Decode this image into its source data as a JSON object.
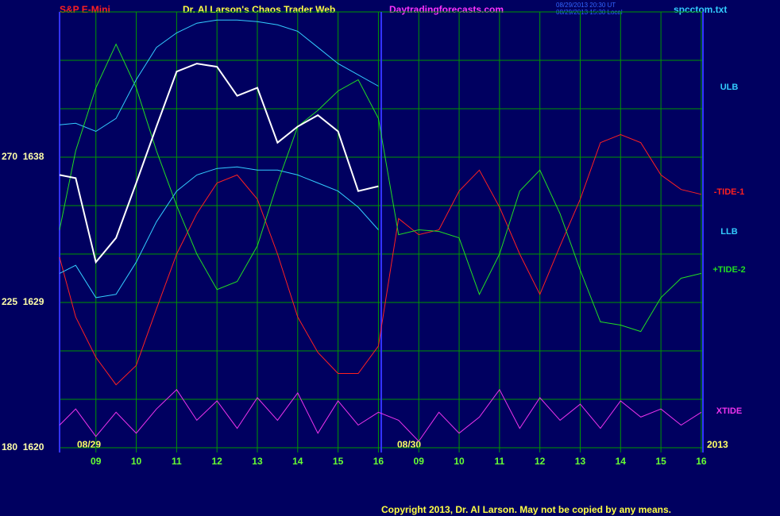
{
  "chart_data": {
    "type": "line",
    "subtitle": "S&P E-Mini",
    "title": "Dr. Al Larson's Chaos Trader Web",
    "site": "Daytradingforecasts.com",
    "timestamps": [
      "08/29/2013 20:30 UT",
      "08/29/2013 15:30 Local"
    ],
    "file": "spcctom.txt",
    "copyright": "Copyright 2013, Dr. Al Larson. May not be copied by any means.",
    "date_labels": [
      "08/29",
      "08/30",
      "2013"
    ],
    "grid": true,
    "xlim": [
      8.1,
      24.1
    ],
    "xticks": [
      {
        "value": 9,
        "label": "09"
      },
      10,
      11,
      12,
      13,
      14,
      15,
      16,
      {
        "value": 17,
        "label": "09"
      },
      {
        "value": 18,
        "label": "10"
      },
      {
        "value": 19,
        "label": "11"
      },
      {
        "value": 20,
        "label": "12"
      },
      {
        "value": 21,
        "label": "13"
      },
      {
        "value": 22,
        "label": "14"
      },
      {
        "value": 23,
        "label": "15"
      },
      {
        "value": 24,
        "label": "16"
      }
    ],
    "ylim": [
      1620,
      1647
    ],
    "yticks": [
      {
        "value": 1620,
        "label": "180  1620"
      },
      {
        "value": 1629,
        "label": "225  1629"
      },
      {
        "value": 1638,
        "label": "270  1638"
      }
    ],
    "x": [
      8.1,
      8.5,
      9,
      9.5,
      10,
      10.5,
      11,
      11.5,
      12,
      12.5,
      13,
      13.5,
      14,
      14.5,
      15,
      15.5,
      16,
      16.5,
      17,
      17.5,
      18,
      18.5,
      19,
      19.5,
      20,
      20.5,
      21,
      21.5,
      22,
      22.5,
      23,
      23.5,
      24
    ],
    "series": [
      {
        "name": "ULB",
        "color": "#33ccff",
        "values": [
          1640.0,
          1640.1,
          1639.6,
          1640.4,
          1642.8,
          1644.8,
          1645.7,
          1646.3,
          1646.5,
          1646.5,
          1646.4,
          1646.2,
          1645.8,
          1644.8,
          1643.8,
          1643.1,
          1642.4,
          null,
          null,
          null,
          null,
          null,
          null,
          null,
          null,
          null,
          null,
          null,
          null,
          null,
          null,
          null,
          null
        ]
      },
      {
        "name": "-TIDE-1",
        "color": "#ff2020",
        "values": [
          1631.8,
          1628.1,
          1625.6,
          1623.9,
          1625.1,
          1628.6,
          1632.0,
          1634.5,
          1636.4,
          1636.9,
          1635.4,
          1632.0,
          1628.1,
          1625.9,
          1624.6,
          1624.6,
          1626.3,
          1634.2,
          1633.2,
          1633.5,
          1635.9,
          1637.2,
          1634.9,
          1632.0,
          1629.5,
          1632.5,
          1635.4,
          1638.9,
          1639.4,
          1638.9,
          1636.9,
          1636.0,
          1635.7
        ]
      },
      {
        "name": "LLB",
        "color": "#33ccff",
        "values": [
          1630.8,
          1631.3,
          1629.3,
          1629.5,
          1631.5,
          1634.0,
          1635.9,
          1636.9,
          1637.3,
          1637.4,
          1637.2,
          1637.2,
          1636.9,
          1636.4,
          1635.9,
          1634.9,
          1633.5,
          null,
          null,
          null,
          null,
          null,
          null,
          null,
          null,
          null,
          null,
          null,
          null,
          null,
          null,
          null,
          null
        ]
      },
      {
        "name": "+TIDE-2",
        "color": "#22dd22",
        "values": [
          1633.5,
          1638.4,
          1642.3,
          1645.0,
          1642.3,
          1638.4,
          1635.0,
          1632.0,
          1629.8,
          1630.3,
          1632.5,
          1636.4,
          1639.9,
          1640.9,
          1642.1,
          1642.8,
          1640.4,
          1633.2,
          1633.5,
          1633.4,
          1633.0,
          1629.5,
          1632.0,
          1635.9,
          1637.2,
          1634.5,
          1631.0,
          1627.8,
          1627.6,
          1627.2,
          1629.3,
          1630.5,
          1630.8
        ]
      },
      {
        "name": "XTIDE",
        "color": "#ee33ee",
        "values": [
          1621.4,
          1622.4,
          1620.7,
          1622.2,
          1620.9,
          1622.4,
          1623.6,
          1621.7,
          1622.9,
          1621.2,
          1623.1,
          1621.7,
          1623.4,
          1620.9,
          1622.9,
          1621.4,
          1622.2,
          1621.7,
          1620.4,
          1622.2,
          1620.9,
          1621.9,
          1623.6,
          1621.2,
          1623.1,
          1621.7,
          1622.7,
          1621.2,
          1622.9,
          1621.9,
          1622.4,
          1621.4,
          1622.2
        ]
      },
      {
        "color": "#ffffff",
        "values": [
          1636.9,
          1636.7,
          1631.5,
          1633.0,
          1636.4,
          1639.9,
          1643.3,
          1643.8,
          1643.6,
          1641.8,
          1642.3,
          1638.9,
          1639.9,
          1640.6,
          1639.6,
          1635.9,
          1636.2,
          null,
          null,
          null,
          null,
          null,
          null,
          null,
          null,
          null,
          null,
          null,
          null,
          null,
          null,
          null,
          null
        ]
      }
    ]
  }
}
